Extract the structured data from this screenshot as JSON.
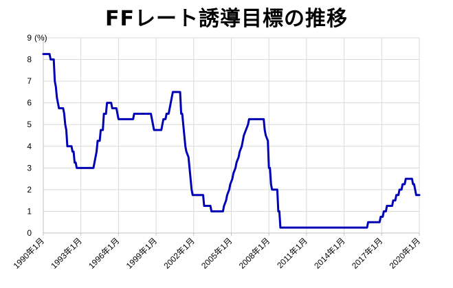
{
  "chart_data": {
    "type": "line",
    "title": "FFレート誘導目標の推移",
    "ylabel": "(%)",
    "ylim": [
      0,
      9
    ],
    "yticks": [
      0,
      1,
      2,
      3,
      4,
      5,
      6,
      7,
      8,
      9
    ],
    "xlim": [
      "1990-01",
      "2020-01"
    ],
    "xticks": [
      "1990年1月",
      "1993年1月",
      "1996年1月",
      "1999年1月",
      "2002年1月",
      "2005年1月",
      "2008年1月",
      "2011年1月",
      "2014年1月",
      "2017年1月",
      "2020年1月"
    ],
    "grid": true,
    "series": [
      {
        "color": "#0000b4",
        "points": [
          [
            "1990-01",
            8.25
          ],
          [
            "1990-07",
            8.25
          ],
          [
            "1990-08",
            8.0
          ],
          [
            "1990-11",
            8.0
          ],
          [
            "1990-12",
            7.0
          ],
          [
            "1991-01",
            6.75
          ],
          [
            "1991-02",
            6.25
          ],
          [
            "1991-03",
            6.0
          ],
          [
            "1991-04",
            5.75
          ],
          [
            "1991-08",
            5.75
          ],
          [
            "1991-09",
            5.5
          ],
          [
            "1991-10",
            5.0
          ],
          [
            "1991-11",
            4.75
          ],
          [
            "1991-12",
            4.0
          ],
          [
            "1992-04",
            4.0
          ],
          [
            "1992-05",
            3.75
          ],
          [
            "1992-06",
            3.75
          ],
          [
            "1992-07",
            3.25
          ],
          [
            "1992-08",
            3.25
          ],
          [
            "1992-09",
            3.0
          ],
          [
            "1994-01",
            3.0
          ],
          [
            "1994-02",
            3.25
          ],
          [
            "1994-03",
            3.5
          ],
          [
            "1994-04",
            3.75
          ],
          [
            "1994-05",
            4.25
          ],
          [
            "1994-07",
            4.25
          ],
          [
            "1994-08",
            4.75
          ],
          [
            "1994-10",
            4.75
          ],
          [
            "1994-11",
            5.5
          ],
          [
            "1995-01",
            5.5
          ],
          [
            "1995-02",
            6.0
          ],
          [
            "1995-06",
            6.0
          ],
          [
            "1995-07",
            5.75
          ],
          [
            "1995-11",
            5.75
          ],
          [
            "1995-12",
            5.5
          ],
          [
            "1996-01",
            5.25
          ],
          [
            "1997-03",
            5.25
          ],
          [
            "1997-04",
            5.5
          ],
          [
            "1998-08",
            5.5
          ],
          [
            "1998-09",
            5.25
          ],
          [
            "1998-10",
            5.0
          ],
          [
            "1998-11",
            4.75
          ],
          [
            "1999-06",
            4.75
          ],
          [
            "1999-07",
            5.0
          ],
          [
            "1999-08",
            5.25
          ],
          [
            "1999-10",
            5.25
          ],
          [
            "1999-11",
            5.5
          ],
          [
            "2000-01",
            5.5
          ],
          [
            "2000-02",
            5.75
          ],
          [
            "2000-03",
            6.0
          ],
          [
            "2000-05",
            6.5
          ],
          [
            "2000-12",
            6.5
          ],
          [
            "2001-01",
            5.5
          ],
          [
            "2001-02",
            5.5
          ],
          [
            "2001-03",
            5.0
          ],
          [
            "2001-04",
            4.5
          ],
          [
            "2001-05",
            4.0
          ],
          [
            "2001-06",
            3.75
          ],
          [
            "2001-08",
            3.5
          ],
          [
            "2001-09",
            3.0
          ],
          [
            "2001-10",
            2.5
          ],
          [
            "2001-11",
            2.0
          ],
          [
            "2001-12",
            1.75
          ],
          [
            "2002-10",
            1.75
          ],
          [
            "2002-11",
            1.25
          ],
          [
            "2003-05",
            1.25
          ],
          [
            "2003-06",
            1.0
          ],
          [
            "2004-05",
            1.0
          ],
          [
            "2004-06",
            1.25
          ],
          [
            "2004-08",
            1.5
          ],
          [
            "2004-09",
            1.75
          ],
          [
            "2004-11",
            2.0
          ],
          [
            "2004-12",
            2.25
          ],
          [
            "2005-02",
            2.5
          ],
          [
            "2005-03",
            2.75
          ],
          [
            "2005-05",
            3.0
          ],
          [
            "2005-06",
            3.25
          ],
          [
            "2005-08",
            3.5
          ],
          [
            "2005-09",
            3.75
          ],
          [
            "2005-11",
            4.0
          ],
          [
            "2005-12",
            4.25
          ],
          [
            "2006-01",
            4.5
          ],
          [
            "2006-03",
            4.75
          ],
          [
            "2006-05",
            5.0
          ],
          [
            "2006-06",
            5.25
          ],
          [
            "2007-08",
            5.25
          ],
          [
            "2007-09",
            4.75
          ],
          [
            "2007-10",
            4.5
          ],
          [
            "2007-12",
            4.25
          ],
          [
            "2008-01",
            3.0
          ],
          [
            "2008-02",
            3.0
          ],
          [
            "2008-03",
            2.25
          ],
          [
            "2008-04",
            2.0
          ],
          [
            "2008-09",
            2.0
          ],
          [
            "2008-10",
            1.0
          ],
          [
            "2008-11",
            1.0
          ],
          [
            "2008-12",
            0.25
          ],
          [
            "2015-11",
            0.25
          ],
          [
            "2015-12",
            0.5
          ],
          [
            "2016-11",
            0.5
          ],
          [
            "2016-12",
            0.75
          ],
          [
            "2017-02",
            0.75
          ],
          [
            "2017-03",
            1.0
          ],
          [
            "2017-05",
            1.0
          ],
          [
            "2017-06",
            1.25
          ],
          [
            "2017-11",
            1.25
          ],
          [
            "2017-12",
            1.5
          ],
          [
            "2018-02",
            1.5
          ],
          [
            "2018-03",
            1.75
          ],
          [
            "2018-05",
            1.75
          ],
          [
            "2018-06",
            2.0
          ],
          [
            "2018-08",
            2.0
          ],
          [
            "2018-09",
            2.25
          ],
          [
            "2018-11",
            2.25
          ],
          [
            "2018-12",
            2.5
          ],
          [
            "2019-06",
            2.5
          ],
          [
            "2019-07",
            2.25
          ],
          [
            "2019-08",
            2.25
          ],
          [
            "2019-09",
            2.0
          ],
          [
            "2019-10",
            1.75
          ],
          [
            "2020-01",
            1.75
          ]
        ]
      }
    ]
  }
}
